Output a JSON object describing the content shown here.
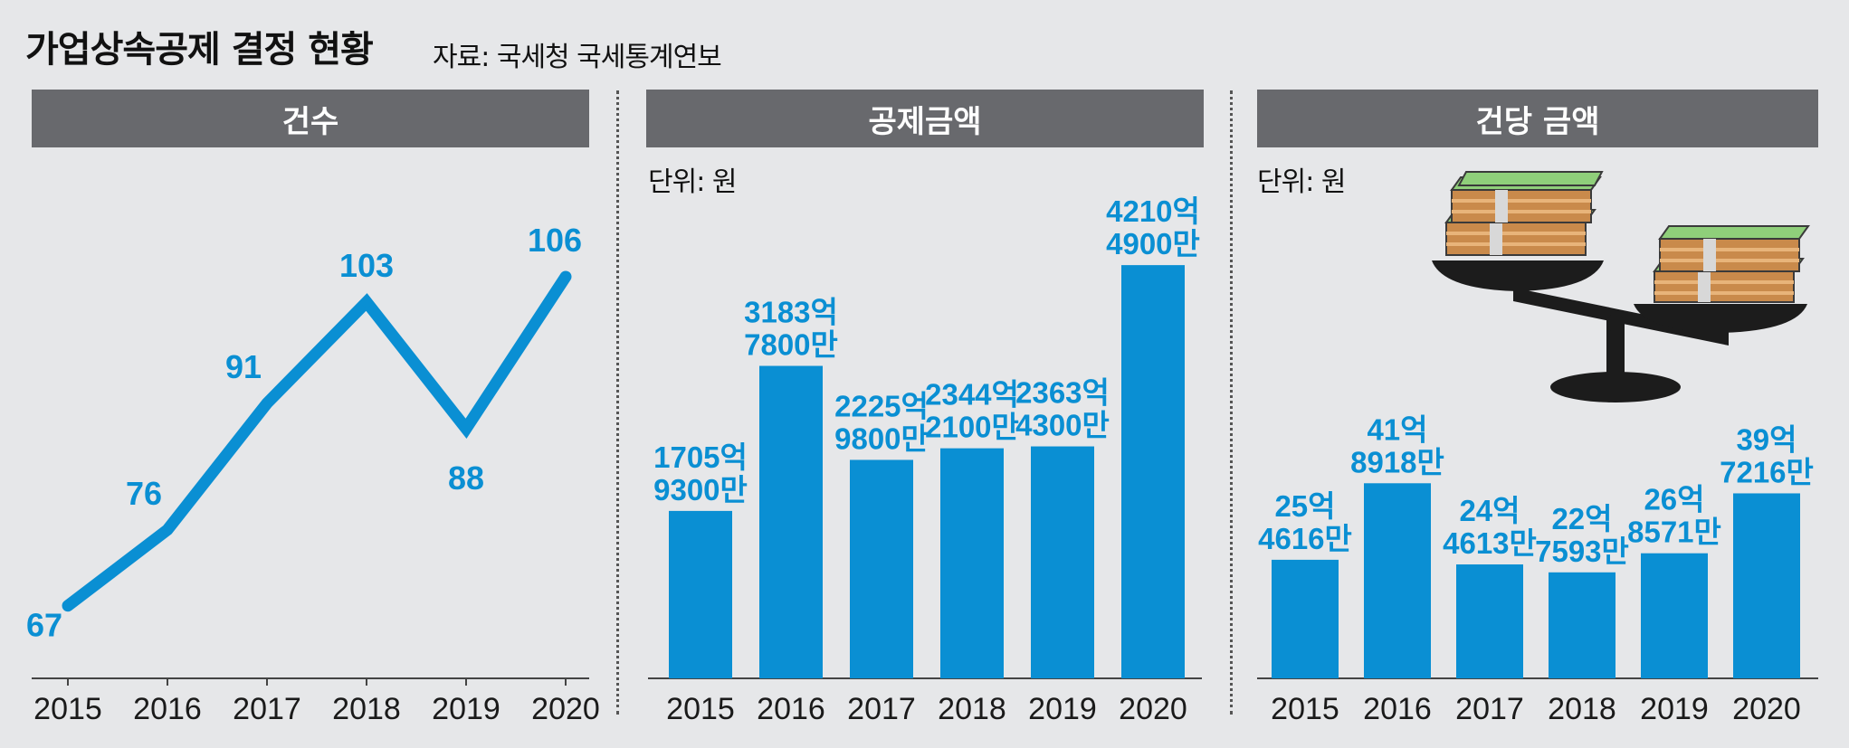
{
  "header": {
    "title": "가업상속공제 결정 현황",
    "source": "자료: 국세청 국세통계연보"
  },
  "colors": {
    "accent": "#0a8fd3",
    "header_bg": "#68696d",
    "background": "#e6e7e9"
  },
  "chart_data": [
    {
      "type": "line",
      "title": "건수",
      "categories": [
        "2015",
        "2016",
        "2017",
        "2018",
        "2019",
        "2020"
      ],
      "values": [
        67,
        76,
        91,
        103,
        88,
        106
      ],
      "labels": [
        "67",
        "76",
        "91",
        "103",
        "88",
        "106"
      ],
      "ylim": [
        60,
        112
      ]
    },
    {
      "type": "bar",
      "title": "공제금액",
      "unit": "단위: 원",
      "categories": [
        "2015",
        "2016",
        "2017",
        "2018",
        "2019",
        "2020"
      ],
      "values": [
        170593000000,
        318378000000,
        222598000000,
        234421000000,
        236343000000,
        421049000000
      ],
      "labels": [
        [
          "1705억",
          "9300만"
        ],
        [
          "3183억",
          "7800만"
        ],
        [
          "2225억",
          "9800만"
        ],
        [
          "2344억",
          "2100만"
        ],
        [
          "2363억",
          "4300만"
        ],
        [
          "4210억",
          "4900만"
        ]
      ],
      "ylim": [
        0,
        470000000000
      ]
    },
    {
      "type": "bar",
      "title": "건당 금액",
      "unit": "단위: 원",
      "categories": [
        "2015",
        "2016",
        "2017",
        "2018",
        "2019",
        "2020"
      ],
      "values": [
        2546160000,
        4189180000,
        2446130000,
        2275930000,
        2685710000,
        3972160000
      ],
      "labels": [
        [
          "25억",
          "4616만"
        ],
        [
          "41억",
          "8918만"
        ],
        [
          "24억",
          "4613만"
        ],
        [
          "22억",
          "7593만"
        ],
        [
          "26억",
          "8571만"
        ],
        [
          "39억",
          "7216만"
        ]
      ],
      "ylim": [
        0,
        6700000000
      ]
    }
  ]
}
